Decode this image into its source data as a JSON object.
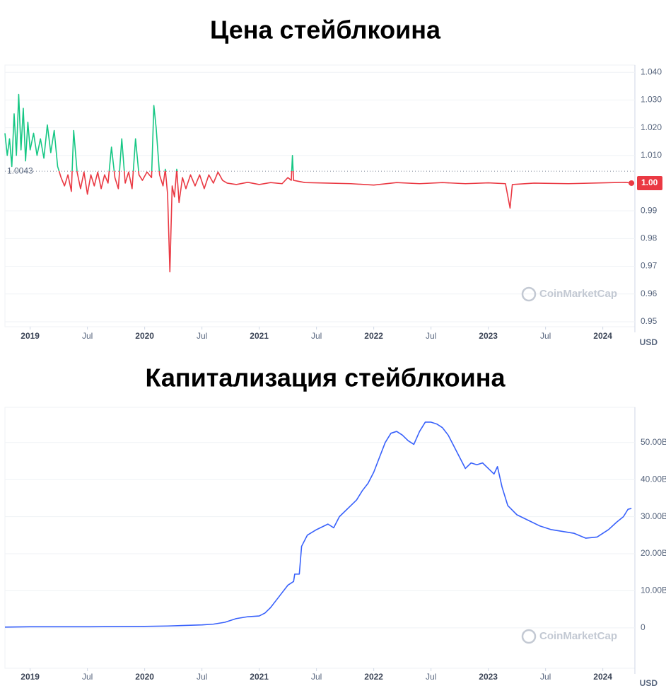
{
  "chart_data": [
    {
      "type": "line",
      "title": "Цена стейблкоина",
      "unit": "USD",
      "watermark": "CoinMarketCap",
      "above_color": "#16c784",
      "below_color": "#ea3943",
      "grid": true,
      "baseline": 1.0043,
      "current_price": {
        "value": 1.0,
        "label": "1.00"
      },
      "xlim": [
        2018.78,
        2024.28
      ],
      "xticks": [
        2019,
        {
          "value": 2019.5,
          "label": "Jul"
        },
        2020,
        {
          "value": 2020.5,
          "label": "Jul"
        },
        2021,
        {
          "value": 2021.5,
          "label": "Jul"
        },
        2022,
        {
          "value": 2022.5,
          "label": "Jul"
        },
        2023,
        {
          "value": 2023.5,
          "label": "Jul"
        },
        2024
      ],
      "ylim": [
        0.9482,
        1.0426
      ],
      "yticks": [
        {
          "value": 1.04,
          "label": "1.040"
        },
        {
          "value": 1.03,
          "label": "1.030"
        },
        {
          "value": 1.02,
          "label": "1.020"
        },
        {
          "value": 1.01,
          "label": "1.010"
        },
        0.99,
        0.98,
        0.97,
        0.96,
        0.95
      ],
      "x": [
        2018.78,
        2018.8,
        2018.82,
        2018.84,
        2018.86,
        2018.88,
        2018.9,
        2018.92,
        2018.94,
        2018.96,
        2018.98,
        2019.0,
        2019.03,
        2019.06,
        2019.09,
        2019.12,
        2019.15,
        2019.18,
        2019.21,
        2019.24,
        2019.27,
        2019.3,
        2019.33,
        2019.36,
        2019.38,
        2019.41,
        2019.44,
        2019.47,
        2019.5,
        2019.53,
        2019.56,
        2019.59,
        2019.62,
        2019.65,
        2019.68,
        2019.71,
        2019.74,
        2019.77,
        2019.8,
        2019.83,
        2019.86,
        2019.89,
        2019.92,
        2019.95,
        2019.98,
        2020.02,
        2020.06,
        2020.08,
        2020.1,
        2020.13,
        2020.16,
        2020.18,
        2020.2,
        2020.22,
        2020.24,
        2020.26,
        2020.28,
        2020.3,
        2020.33,
        2020.36,
        2020.4,
        2020.44,
        2020.48,
        2020.52,
        2020.56,
        2020.6,
        2020.64,
        2020.68,
        2020.72,
        2020.8,
        2020.9,
        2021.0,
        2021.1,
        2021.2,
        2021.25,
        2021.28,
        2021.29,
        2021.3,
        2021.4,
        2021.6,
        2021.8,
        2022.0,
        2022.2,
        2022.4,
        2022.6,
        2022.8,
        2023.0,
        2023.15,
        2023.19,
        2023.21,
        2023.4,
        2023.7,
        2024.0,
        2024.2,
        2024.25
      ],
      "values": [
        1.018,
        1.01,
        1.016,
        1.006,
        1.025,
        1.01,
        1.032,
        1.012,
        1.027,
        1.008,
        1.022,
        1.012,
        1.018,
        1.01,
        1.016,
        1.009,
        1.021,
        1.011,
        1.019,
        1.006,
        1.002,
        0.999,
        1.003,
        0.997,
        1.019,
        1.004,
        0.998,
        1.004,
        0.996,
        1.003,
        0.999,
        1.004,
        0.998,
        1.003,
        1.0,
        1.013,
        1.002,
        0.998,
        1.016,
        1.0,
        1.004,
        0.998,
        1.016,
        1.003,
        1.001,
        1.004,
        1.002,
        1.028,
        1.02,
        1.003,
        0.999,
        1.005,
        0.996,
        0.968,
        0.999,
        0.995,
        1.005,
        0.993,
        1.002,
        0.998,
        1.003,
        0.999,
        1.003,
        0.998,
        1.003,
        1.0,
        1.004,
        1.001,
        1.0,
        0.9995,
        1.0003,
        0.9995,
        1.0002,
        0.9998,
        1.002,
        1.001,
        1.01,
        1.001,
        1.0002,
        1.0,
        0.9998,
        0.9993,
        1.0002,
        0.9998,
        1.0002,
        0.9998,
        1.0001,
        0.9998,
        0.991,
        0.9995,
        1.0,
        0.9998,
        1.0001,
        1.0003,
        1.0
      ]
    },
    {
      "type": "line",
      "title": "Капитализация стейблкоина",
      "unit": "USD",
      "watermark": "CoinMarketCap",
      "color": "#3861fb",
      "grid": true,
      "xlim": [
        2018.78,
        2024.28
      ],
      "xticks": [
        2019,
        {
          "value": 2019.5,
          "label": "Jul"
        },
        2020,
        {
          "value": 2020.5,
          "label": "Jul"
        },
        2021,
        {
          "value": 2021.5,
          "label": "Jul"
        },
        2022,
        {
          "value": 2022.5,
          "label": "Jul"
        },
        2023,
        {
          "value": 2023.5,
          "label": "Jul"
        },
        2024
      ],
      "ylim": [
        -10.9,
        59.5
      ],
      "yticks": [
        {
          "value": 50,
          "label": "50.00B"
        },
        {
          "value": 40,
          "label": "40.00B"
        },
        {
          "value": 30,
          "label": "30.00B"
        },
        {
          "value": 20,
          "label": "20.00B"
        },
        {
          "value": 10,
          "label": "10.00B"
        },
        0
      ],
      "x": [
        2018.78,
        2019.0,
        2019.5,
        2020.0,
        2020.2,
        2020.5,
        2020.6,
        2020.7,
        2020.8,
        2020.9,
        2021.0,
        2021.05,
        2021.1,
        2021.15,
        2021.2,
        2021.25,
        2021.3,
        2021.31,
        2021.35,
        2021.37,
        2021.42,
        2021.5,
        2021.6,
        2021.65,
        2021.7,
        2021.8,
        2021.85,
        2021.9,
        2021.95,
        2022.0,
        2022.05,
        2022.1,
        2022.15,
        2022.2,
        2022.25,
        2022.3,
        2022.35,
        2022.4,
        2022.45,
        2022.5,
        2022.55,
        2022.6,
        2022.65,
        2022.7,
        2022.75,
        2022.8,
        2022.85,
        2022.9,
        2022.95,
        2023.0,
        2023.05,
        2023.08,
        2023.12,
        2023.17,
        2023.25,
        2023.35,
        2023.45,
        2023.55,
        2023.65,
        2023.75,
        2023.85,
        2023.95,
        2024.0,
        2024.05,
        2024.12,
        2024.18,
        2024.22,
        2024.25
      ],
      "values": [
        0.2,
        0.3,
        0.3,
        0.4,
        0.5,
        0.8,
        1.0,
        1.5,
        2.5,
        3.0,
        3.2,
        4.0,
        5.5,
        7.5,
        9.5,
        11.5,
        12.5,
        14.5,
        14.5,
        22,
        25,
        26.5,
        28,
        27,
        30,
        33,
        34.5,
        37,
        39,
        42,
        46,
        50,
        52.5,
        53,
        52,
        50.5,
        49.5,
        53,
        55.5,
        55.5,
        55,
        54,
        52,
        49,
        46,
        43,
        44.5,
        44,
        44.5,
        43,
        41.5,
        43.5,
        38,
        33,
        30.5,
        29,
        27.5,
        26.5,
        26,
        25.5,
        24.2,
        24.5,
        25.5,
        26.5,
        28.5,
        30,
        32,
        32.2
      ]
    }
  ]
}
